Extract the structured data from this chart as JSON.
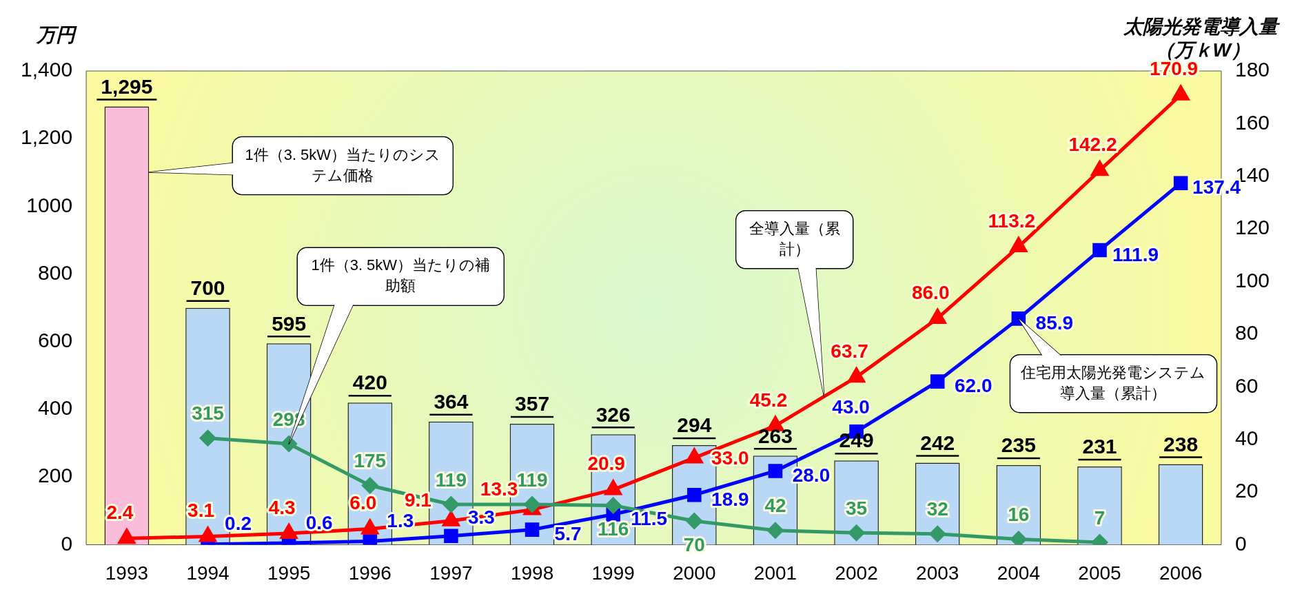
{
  "chart_data": {
    "type": "bar",
    "ylabel": "万円",
    "y2label": "太陽光発電導入量（万ｋW）",
    "categories": [
      "1993",
      "1994",
      "1995",
      "1996",
      "1997",
      "1998",
      "1999",
      "2000",
      "2001",
      "2002",
      "2003",
      "2004",
      "2005",
      "2006"
    ],
    "ylim": [
      0,
      1400
    ],
    "yticks": [
      0,
      200,
      400,
      600,
      800,
      1000,
      {
        "value": 1200,
        "label": "1,200"
      },
      {
        "value": 1400,
        "label": "1,400"
      }
    ],
    "y2lim": [
      0,
      180
    ],
    "y2ticks": [
      0,
      20,
      40,
      60,
      80,
      100,
      120,
      140,
      160,
      180
    ],
    "series": [
      {
        "name": "1件（3. 5kW）当たりのシステム価格",
        "colors": [
          "#f9bcd9",
          "#b8d8f6",
          "#b8d8f6",
          "#b8d8f6",
          "#b8d8f6",
          "#b8d8f6",
          "#b8d8f6",
          "#b8d8f6",
          "#b8d8f6",
          "#b8d8f6",
          "#b8d8f6",
          "#b8d8f6",
          "#b8d8f6",
          "#b8d8f6"
        ],
        "values": [
          1295,
          700,
          595,
          420,
          364,
          357,
          326,
          294,
          263,
          249,
          242,
          235,
          231,
          238
        ],
        "value_labels": [
          "1,295",
          "700",
          "595",
          "420",
          "364",
          "357",
          "326",
          "294",
          "263",
          "249",
          "242",
          "235",
          "231",
          "238"
        ]
      },
      {
        "name": "1件（3. 5kW）当たりの補助額",
        "type": "line",
        "color": "#339966",
        "marker": "diamond",
        "values": [
          null,
          315,
          298,
          175,
          119,
          119,
          116,
          70,
          42,
          35,
          32,
          16,
          7,
          null
        ],
        "value_labels": [
          null,
          "315",
          "298",
          "175",
          "119",
          "119",
          "116",
          "70",
          "42",
          "35",
          "32",
          "16",
          "7",
          null
        ]
      },
      {
        "name": "全導入量（累計）",
        "type": "line",
        "axis": "y2",
        "color": "#ff0000",
        "marker": "triangle",
        "values": [
          2.4,
          3.1,
          4.3,
          6.0,
          9.1,
          13.3,
          20.9,
          33.0,
          45.2,
          63.7,
          86.0,
          113.2,
          142.2,
          170.9
        ],
        "value_labels": [
          "2.4",
          "3.1",
          "4.3",
          "6.0",
          "9.1",
          "13.3",
          "20.9",
          "33.0",
          "45.2",
          "63.7",
          "86.0",
          "113.2",
          "142.2",
          "170.9"
        ]
      },
      {
        "name": "住宅用太陽光発電システム導入量（累計）",
        "type": "line",
        "axis": "y2",
        "color": "#0000ff",
        "marker": "square",
        "values": [
          null,
          0.2,
          0.6,
          1.3,
          3.3,
          5.7,
          11.5,
          18.9,
          28.0,
          43.0,
          62.0,
          85.9,
          111.9,
          137.4
        ],
        "value_labels": [
          null,
          "0.2",
          "0.6",
          "1.3",
          "3.3",
          "5.7",
          "11.5",
          "18.9",
          "28.0",
          "43.0",
          "62.0",
          "85.9",
          "111.9",
          "137.4"
        ]
      }
    ]
  }
}
